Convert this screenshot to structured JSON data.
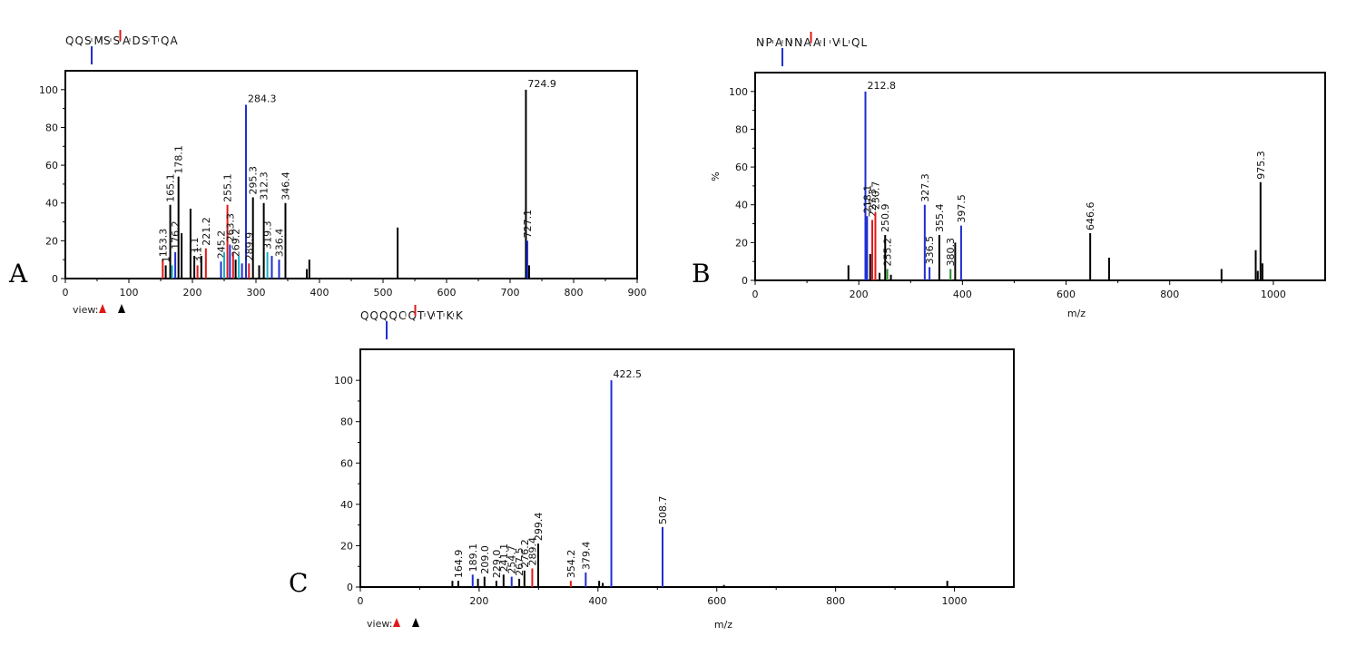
{
  "colors": {
    "blue": "#1f2fd0",
    "red": "#e01818",
    "black": "#000000",
    "cyan": "#14b4c8",
    "green": "#2e8b2e"
  },
  "chart_data": [
    {
      "id": "A",
      "type": "bar",
      "panel_label": "A",
      "sequence": [
        "Q",
        "Q",
        "S",
        "M",
        "S",
        "S",
        "A",
        "D",
        "S",
        "T",
        "Q",
        "A"
      ],
      "xlabel": "",
      "ylabel": "",
      "xlim": [
        0,
        900
      ],
      "ylim": [
        0,
        110
      ],
      "xticks": [
        0,
        100,
        200,
        300,
        400,
        500,
        600,
        700,
        800,
        900
      ],
      "yticks": [
        0,
        20,
        40,
        60,
        80,
        100
      ],
      "view_label": "view:",
      "peaks": [
        {
          "x": 153.3,
          "y": 10,
          "c": "red",
          "label": "153.3"
        },
        {
          "x": 158,
          "y": 7,
          "c": "black",
          "label": "1"
        },
        {
          "x": 165.1,
          "y": 39,
          "c": "black",
          "label": "165.1"
        },
        {
          "x": 168,
          "y": 7,
          "c": "cyan",
          "label": ""
        },
        {
          "x": 173,
          "y": 14,
          "c": "blue",
          "label": "176.2"
        },
        {
          "x": 178.1,
          "y": 54,
          "c": "black",
          "label": "178.1"
        },
        {
          "x": 183,
          "y": 24,
          "c": "black",
          "label": ""
        },
        {
          "x": 197,
          "y": 37,
          "c": "black",
          "label": ""
        },
        {
          "x": 203,
          "y": 12,
          "c": "black",
          "label": "1.1"
        },
        {
          "x": 208,
          "y": 7,
          "c": "red",
          "label": "3.1"
        },
        {
          "x": 214,
          "y": 12,
          "c": "black",
          "label": ""
        },
        {
          "x": 221.2,
          "y": 16,
          "c": "red",
          "label": "221.2"
        },
        {
          "x": 245,
          "y": 9,
          "c": "blue",
          "label": "245.2"
        },
        {
          "x": 250,
          "y": 14,
          "c": "cyan",
          "label": ""
        },
        {
          "x": 255.1,
          "y": 39,
          "c": "red",
          "label": "255.1"
        },
        {
          "x": 259,
          "y": 18,
          "c": "blue",
          "label": "263.3"
        },
        {
          "x": 264,
          "y": 14,
          "c": "red",
          "label": ""
        },
        {
          "x": 268,
          "y": 10,
          "c": "black",
          "label": "269.2"
        },
        {
          "x": 273,
          "y": 12,
          "c": "cyan",
          "label": ""
        },
        {
          "x": 278,
          "y": 8,
          "c": "blue",
          "label": ""
        },
        {
          "x": 284.3,
          "y": 92,
          "c": "blue",
          "label": "284.3"
        },
        {
          "x": 289,
          "y": 8,
          "c": "red",
          "label": "289.9"
        },
        {
          "x": 295.3,
          "y": 43,
          "c": "black",
          "label": "295.3"
        },
        {
          "x": 305,
          "y": 7,
          "c": "black",
          "label": ""
        },
        {
          "x": 312.3,
          "y": 40,
          "c": "black",
          "label": "312.3"
        },
        {
          "x": 318,
          "y": 14,
          "c": "cyan",
          "label": "319.3"
        },
        {
          "x": 325,
          "y": 12,
          "c": "blue",
          "label": ""
        },
        {
          "x": 336.4,
          "y": 10,
          "c": "blue",
          "label": "336.4"
        },
        {
          "x": 346.4,
          "y": 40,
          "c": "black",
          "label": "346.4"
        },
        {
          "x": 380,
          "y": 5,
          "c": "black",
          "label": ""
        },
        {
          "x": 384,
          "y": 10,
          "c": "black",
          "label": ""
        },
        {
          "x": 523,
          "y": 27,
          "c": "black",
          "label": ""
        },
        {
          "x": 724.9,
          "y": 100,
          "c": "black",
          "label": "724.9"
        },
        {
          "x": 727.1,
          "y": 20,
          "c": "blue",
          "label": "727.1"
        },
        {
          "x": 730,
          "y": 7,
          "c": "black",
          "label": ""
        }
      ]
    },
    {
      "id": "B",
      "type": "bar",
      "panel_label": "B",
      "sequence": [
        "N",
        "P",
        "A",
        "N",
        "N",
        "A",
        "A",
        "I",
        "V",
        "L",
        "Q",
        "L"
      ],
      "xlabel": "m/z",
      "ylabel": "%",
      "xlim": [
        0,
        1100
      ],
      "ylim": [
        0,
        110
      ],
      "xticks": [
        0,
        200,
        400,
        600,
        800,
        1000
      ],
      "yticks": [
        0,
        20,
        40,
        60,
        80,
        100
      ],
      "peaks": [
        {
          "x": 180,
          "y": 8,
          "c": "black",
          "label": ""
        },
        {
          "x": 212.8,
          "y": 100,
          "c": "blue",
          "label": "212.8"
        },
        {
          "x": 216,
          "y": 34,
          "c": "blue",
          "label": "218.1"
        },
        {
          "x": 222,
          "y": 14,
          "c": "black",
          "label": ""
        },
        {
          "x": 226,
          "y": 32,
          "c": "red",
          "label": "227.3"
        },
        {
          "x": 232,
          "y": 36,
          "c": "red",
          "label": "230.7"
        },
        {
          "x": 240,
          "y": 4,
          "c": "black",
          "label": ""
        },
        {
          "x": 250.9,
          "y": 24,
          "c": "black",
          "label": "250.9"
        },
        {
          "x": 255,
          "y": 6,
          "c": "green",
          "label": "255.2"
        },
        {
          "x": 262,
          "y": 3,
          "c": "black",
          "label": ""
        },
        {
          "x": 327.3,
          "y": 40,
          "c": "blue",
          "label": "327.3"
        },
        {
          "x": 336.5,
          "y": 7,
          "c": "blue",
          "label": "336.5"
        },
        {
          "x": 355.4,
          "y": 24,
          "c": "black",
          "label": "355.4"
        },
        {
          "x": 377,
          "y": 6,
          "c": "green",
          "label": "380.3"
        },
        {
          "x": 386,
          "y": 20,
          "c": "black",
          "label": ""
        },
        {
          "x": 397.5,
          "y": 29,
          "c": "blue",
          "label": "397.5"
        },
        {
          "x": 646.6,
          "y": 25,
          "c": "black",
          "label": "646.6"
        },
        {
          "x": 683,
          "y": 12,
          "c": "black",
          "label": ""
        },
        {
          "x": 900,
          "y": 6,
          "c": "black",
          "label": ""
        },
        {
          "x": 966,
          "y": 16,
          "c": "black",
          "label": ""
        },
        {
          "x": 970,
          "y": 5,
          "c": "black",
          "label": ""
        },
        {
          "x": 975.3,
          "y": 52,
          "c": "black",
          "label": "975.3"
        },
        {
          "x": 979,
          "y": 9,
          "c": "black",
          "label": ""
        }
      ]
    },
    {
      "id": "C",
      "type": "bar",
      "panel_label": "C",
      "sequence": [
        "Q",
        "Q",
        "Q",
        "Q",
        "C",
        "Q",
        "T",
        "V",
        "T",
        "K",
        "K"
      ],
      "xlabel": "m/z",
      "ylabel": "",
      "xlim": [
        0,
        1100
      ],
      "ylim": [
        0,
        115
      ],
      "xticks": [
        0,
        200,
        400,
        600,
        800,
        1000
      ],
      "yticks": [
        0,
        20,
        40,
        60,
        80,
        100
      ],
      "view_label": "view:",
      "peaks": [
        {
          "x": 155,
          "y": 3,
          "c": "black",
          "label": ""
        },
        {
          "x": 164.9,
          "y": 3,
          "c": "black",
          "label": "164.9"
        },
        {
          "x": 189.1,
          "y": 6,
          "c": "blue",
          "label": "189.1"
        },
        {
          "x": 198,
          "y": 4,
          "c": "black",
          "label": ""
        },
        {
          "x": 209.0,
          "y": 5,
          "c": "black",
          "label": "209.0"
        },
        {
          "x": 229.0,
          "y": 3,
          "c": "black",
          "label": "229.0"
        },
        {
          "x": 241.1,
          "y": 6,
          "c": "black",
          "label": "241.1"
        },
        {
          "x": 254.7,
          "y": 5,
          "c": "blue",
          "label": "254.7"
        },
        {
          "x": 267.5,
          "y": 4,
          "c": "black",
          "label": "267.5"
        },
        {
          "x": 276.2,
          "y": 8,
          "c": "black",
          "label": "276.2"
        },
        {
          "x": 289.4,
          "y": 9,
          "c": "red",
          "label": "289.4"
        },
        {
          "x": 299.4,
          "y": 21,
          "c": "black",
          "label": "299.4"
        },
        {
          "x": 354.2,
          "y": 3,
          "c": "red",
          "label": "354.2"
        },
        {
          "x": 379.4,
          "y": 7,
          "c": "blue",
          "label": "379.4"
        },
        {
          "x": 402,
          "y": 3,
          "c": "black",
          "label": ""
        },
        {
          "x": 408,
          "y": 2,
          "c": "black",
          "label": ""
        },
        {
          "x": 422.5,
          "y": 100,
          "c": "blue",
          "label": "422.5"
        },
        {
          "x": 508.7,
          "y": 29,
          "c": "blue",
          "label": "508.7"
        },
        {
          "x": 612,
          "y": 1,
          "c": "black",
          "label": ""
        },
        {
          "x": 988,
          "y": 3,
          "c": "black",
          "label": ""
        }
      ]
    }
  ]
}
